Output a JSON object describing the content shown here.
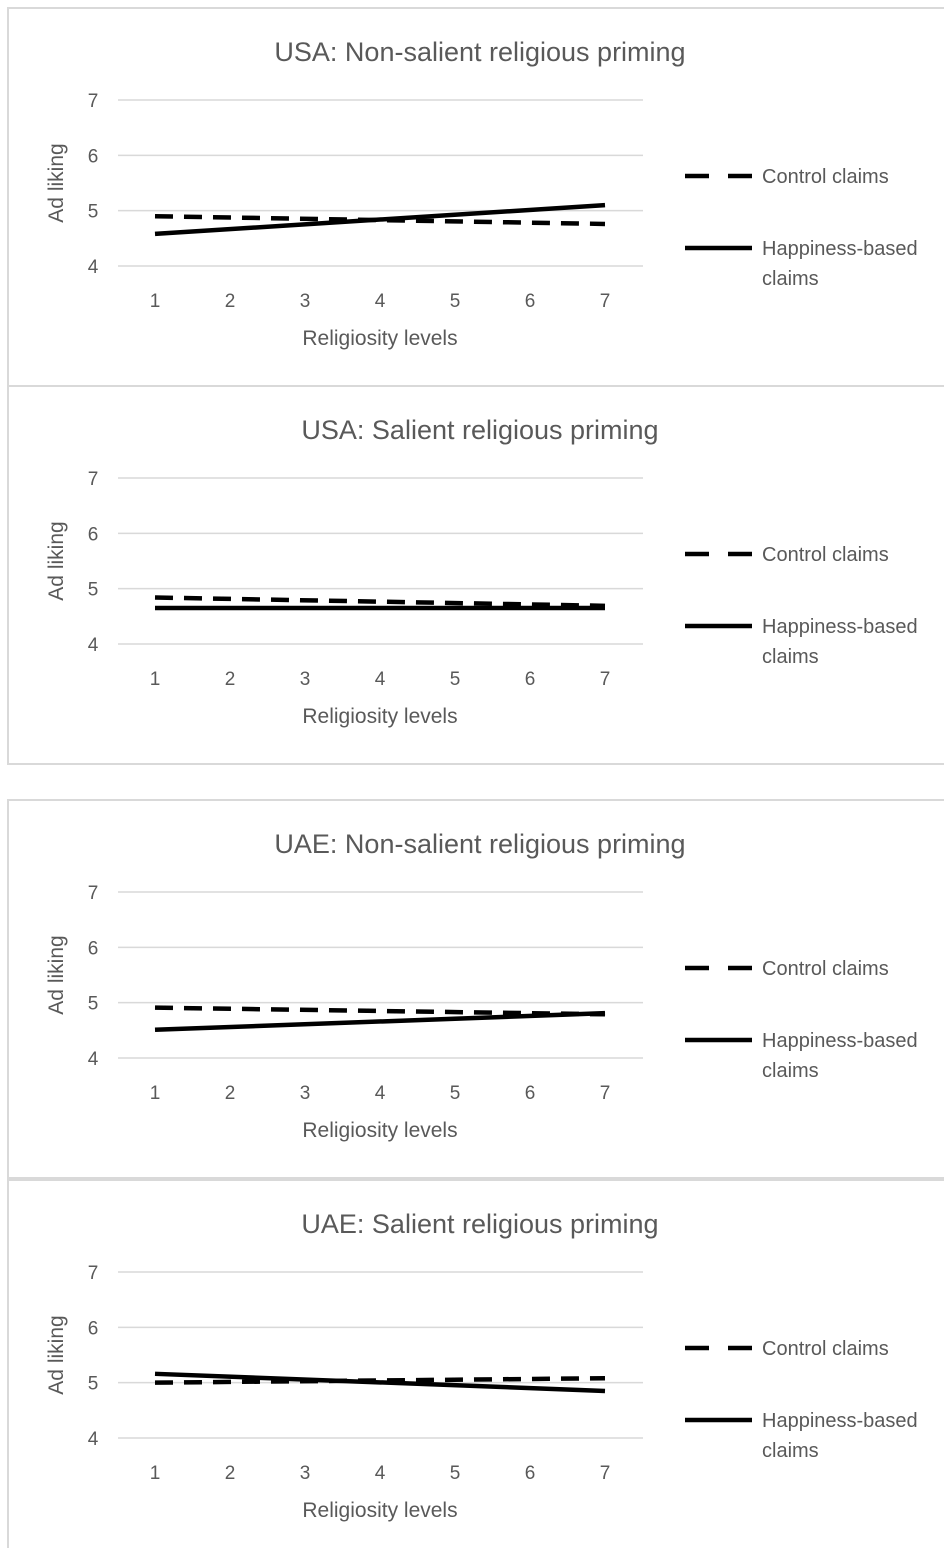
{
  "chart_data": [
    {
      "type": "line",
      "title": "USA: Non-salient religious priming",
      "xlabel": "Religiosity levels",
      "ylabel": "Ad liking",
      "x": [
        1,
        2,
        3,
        4,
        5,
        6,
        7
      ],
      "ylim": [
        4,
        7
      ],
      "yticks": [
        4,
        5,
        6,
        7
      ],
      "grid": true,
      "legend_position": "right",
      "series": [
        {
          "name": "Control claims",
          "style": "dashed",
          "color": "#000000",
          "start": 4.9,
          "end": 4.76
        },
        {
          "name": "Happiness-based claims",
          "style": "solid",
          "color": "#000000",
          "start": 4.58,
          "end": 5.1
        }
      ]
    },
    {
      "type": "line",
      "title": "USA: Salient religious priming",
      "xlabel": "Religiosity levels",
      "ylabel": "Ad liking",
      "x": [
        1,
        2,
        3,
        4,
        5,
        6,
        7
      ],
      "ylim": [
        4,
        7
      ],
      "yticks": [
        4,
        5,
        6,
        7
      ],
      "grid": true,
      "legend_position": "right",
      "series": [
        {
          "name": "Control claims",
          "style": "dashed",
          "color": "#000000",
          "start": 4.84,
          "end": 4.69
        },
        {
          "name": "Happiness-based claims",
          "style": "solid",
          "color": "#000000",
          "start": 4.65,
          "end": 4.65
        }
      ]
    },
    {
      "type": "line",
      "title": "UAE: Non-salient religious priming",
      "xlabel": "Religiosity levels",
      "ylabel": "Ad liking",
      "x": [
        1,
        2,
        3,
        4,
        5,
        6,
        7
      ],
      "ylim": [
        4,
        7
      ],
      "yticks": [
        4,
        5,
        6,
        7
      ],
      "grid": true,
      "legend_position": "right",
      "series": [
        {
          "name": "Control claims",
          "style": "dashed",
          "color": "#000000",
          "start": 4.91,
          "end": 4.79
        },
        {
          "name": "Happiness-based claims",
          "style": "solid",
          "color": "#000000",
          "start": 4.51,
          "end": 4.81
        }
      ]
    },
    {
      "type": "line",
      "title": "UAE: Salient religious priming",
      "xlabel": "Religiosity levels",
      "ylabel": "Ad liking",
      "x": [
        1,
        2,
        3,
        4,
        5,
        6,
        7
      ],
      "ylim": [
        4,
        7
      ],
      "yticks": [
        4,
        5,
        6,
        7
      ],
      "grid": true,
      "legend_position": "right",
      "series": [
        {
          "name": "Control claims",
          "style": "dashed",
          "color": "#000000",
          "start": 5.0,
          "end": 5.08
        },
        {
          "name": "Happiness-based claims",
          "style": "solid",
          "color": "#000000",
          "start": 5.16,
          "end": 4.85
        }
      ]
    }
  ]
}
